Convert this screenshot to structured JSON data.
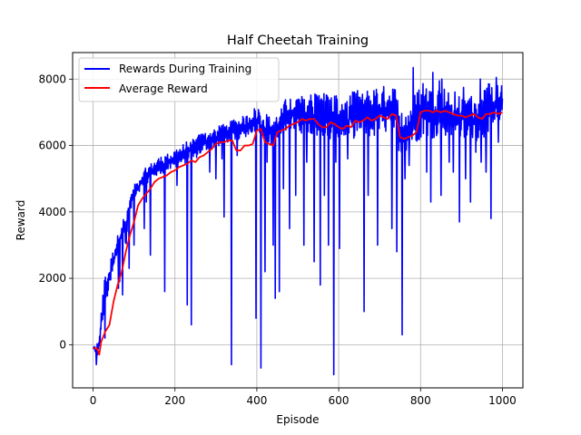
{
  "chart_data": {
    "type": "line",
    "title": "Half Cheetah Training",
    "xlabel": "Episode",
    "ylabel": "Reward",
    "xlim": [
      -50,
      1050
    ],
    "ylim": [
      -1300,
      8800
    ],
    "xticks": [
      0,
      200,
      400,
      600,
      800,
      1000
    ],
    "yticks": [
      0,
      2000,
      4000,
      6000,
      8000
    ],
    "grid": true,
    "legend": "top-left",
    "series": [
      {
        "name": "Rewards During Training",
        "color": "#0000ff",
        "envelope": [
          [
            0,
            -80,
            -80
          ],
          [
            5,
            -300,
            0
          ],
          [
            10,
            -650,
            100
          ],
          [
            15,
            -200,
            400
          ],
          [
            20,
            300,
            1000
          ],
          [
            25,
            700,
            1800
          ],
          [
            30,
            1200,
            2100
          ],
          [
            35,
            1400,
            2300
          ],
          [
            40,
            1600,
            2400
          ],
          [
            45,
            1900,
            2700
          ],
          [
            50,
            2200,
            2900
          ],
          [
            55,
            2500,
            3100
          ],
          [
            60,
            2700,
            3300
          ],
          [
            65,
            2900,
            3450
          ],
          [
            70,
            3200,
            3700
          ],
          [
            75,
            3400,
            3850
          ],
          [
            80,
            2400,
            4000
          ],
          [
            85,
            3700,
            4200
          ],
          [
            90,
            4000,
            4450
          ],
          [
            95,
            4200,
            4650
          ],
          [
            100,
            4300,
            4800
          ],
          [
            110,
            4500,
            5000
          ],
          [
            120,
            4700,
            5200
          ],
          [
            130,
            4850,
            5350
          ],
          [
            140,
            4950,
            5450
          ],
          [
            150,
            5050,
            5550
          ],
          [
            160,
            5100,
            5650
          ],
          [
            170,
            5150,
            5700
          ],
          [
            180,
            5200,
            5750
          ],
          [
            190,
            5250,
            5800
          ],
          [
            200,
            5300,
            5900
          ],
          [
            210,
            5350,
            6000
          ],
          [
            220,
            5400,
            6050
          ],
          [
            230,
            5500,
            6150
          ],
          [
            240,
            5550,
            6200
          ],
          [
            250,
            5600,
            6250
          ],
          [
            260,
            5700,
            6350
          ],
          [
            270,
            5800,
            6400
          ],
          [
            280,
            5850,
            6450
          ],
          [
            290,
            5900,
            6500
          ],
          [
            300,
            5950,
            6550
          ],
          [
            310,
            6000,
            6600
          ],
          [
            320,
            6050,
            6650
          ],
          [
            330,
            6100,
            6700
          ],
          [
            340,
            6150,
            6750
          ],
          [
            350,
            6150,
            6800
          ],
          [
            360,
            6200,
            6850
          ],
          [
            370,
            6250,
            6900
          ],
          [
            380,
            6300,
            6950
          ],
          [
            390,
            6400,
            7100
          ],
          [
            400,
            6450,
            7200
          ],
          [
            410,
            6250,
            7100
          ],
          [
            420,
            6100,
            7000
          ],
          [
            430,
            6000,
            6900
          ],
          [
            440,
            5950,
            6850
          ],
          [
            450,
            6000,
            7000
          ],
          [
            460,
            6200,
            7200
          ],
          [
            470,
            6400,
            7400
          ],
          [
            480,
            6450,
            7500
          ],
          [
            490,
            6400,
            7450
          ],
          [
            500,
            6450,
            7550
          ],
          [
            510,
            6350,
            7500
          ],
          [
            520,
            6300,
            7600
          ],
          [
            530,
            6400,
            7650
          ],
          [
            540,
            6300,
            7550
          ],
          [
            550,
            6250,
            7650
          ],
          [
            560,
            6300,
            7700
          ],
          [
            570,
            6250,
            7650
          ],
          [
            580,
            6100,
            7500
          ],
          [
            590,
            6200,
            7600
          ],
          [
            600,
            6150,
            7550
          ],
          [
            610,
            6150,
            7500
          ],
          [
            620,
            6100,
            7450
          ],
          [
            630,
            6250,
            7600
          ],
          [
            640,
            6200,
            7650
          ],
          [
            650,
            6300,
            7700
          ],
          [
            660,
            6250,
            7600
          ],
          [
            670,
            6300,
            7700
          ],
          [
            680,
            6200,
            7650
          ],
          [
            690,
            6300,
            7750
          ],
          [
            700,
            6250,
            7700
          ],
          [
            710,
            6400,
            7800
          ],
          [
            720,
            6350,
            7900
          ],
          [
            730,
            6300,
            7700
          ],
          [
            740,
            6200,
            7800
          ],
          [
            750,
            5700,
            7200
          ],
          [
            760,
            5800,
            7000
          ],
          [
            770,
            5900,
            7100
          ],
          [
            780,
            6000,
            7500
          ],
          [
            790,
            6100,
            7600
          ],
          [
            800,
            6200,
            7900
          ],
          [
            810,
            6300,
            8000
          ],
          [
            820,
            6250,
            7900
          ],
          [
            830,
            6200,
            7800
          ],
          [
            840,
            6300,
            7900
          ],
          [
            850,
            6350,
            7800
          ],
          [
            860,
            6300,
            7750
          ],
          [
            870,
            6250,
            7700
          ],
          [
            880,
            6200,
            7650
          ],
          [
            890,
            6200,
            7600
          ],
          [
            900,
            6150,
            7550
          ],
          [
            910,
            6150,
            7500
          ],
          [
            920,
            6200,
            7550
          ],
          [
            930,
            6100,
            7500
          ],
          [
            940,
            6150,
            7600
          ],
          [
            950,
            6200,
            7700
          ],
          [
            960,
            6200,
            7800
          ],
          [
            970,
            6250,
            7900
          ],
          [
            980,
            6300,
            8000
          ],
          [
            990,
            6350,
            8100
          ],
          [
            1000,
            6600,
            7800
          ]
        ],
        "spikes": [
          [
            8,
            -600
          ],
          [
            18,
            500
          ],
          [
            29,
            200
          ],
          [
            62,
            1700
          ],
          [
            65,
            1900
          ],
          [
            72,
            1500
          ],
          [
            88,
            2300
          ],
          [
            100,
            3000
          ],
          [
            125,
            3500
          ],
          [
            130,
            4300
          ],
          [
            140,
            2700
          ],
          [
            175,
            1600
          ],
          [
            205,
            4800
          ],
          [
            230,
            1200
          ],
          [
            240,
            600
          ],
          [
            285,
            5200
          ],
          [
            300,
            5000
          ],
          [
            315,
            5600
          ],
          [
            320,
            3850
          ],
          [
            338,
            -600
          ],
          [
            352,
            5700
          ],
          [
            398,
            800
          ],
          [
            405,
            6900
          ],
          [
            410,
            -700
          ],
          [
            420,
            2200
          ],
          [
            425,
            5500
          ],
          [
            440,
            3000
          ],
          [
            445,
            1400
          ],
          [
            455,
            1600
          ],
          [
            465,
            4700
          ],
          [
            480,
            3500
          ],
          [
            495,
            4500
          ],
          [
            515,
            3000
          ],
          [
            522,
            5500
          ],
          [
            540,
            2500
          ],
          [
            555,
            1800
          ],
          [
            565,
            4500
          ],
          [
            575,
            3000
          ],
          [
            588,
            -900
          ],
          [
            593,
            5500
          ],
          [
            602,
            2900
          ],
          [
            622,
            5600
          ],
          [
            662,
            1000
          ],
          [
            672,
            4500
          ],
          [
            695,
            3000
          ],
          [
            730,
            3500
          ],
          [
            742,
            2800
          ],
          [
            755,
            300
          ],
          [
            762,
            5000
          ],
          [
            772,
            5400
          ],
          [
            800,
            7000
          ],
          [
            815,
            5200
          ],
          [
            825,
            4300
          ],
          [
            850,
            4500
          ],
          [
            870,
            5500
          ],
          [
            880,
            5200
          ],
          [
            895,
            3700
          ],
          [
            910,
            5000
          ],
          [
            922,
            4300
          ],
          [
            935,
            5800
          ],
          [
            948,
            5500
          ],
          [
            960,
            5200
          ],
          [
            972,
            3800
          ],
          [
            990,
            6100
          ]
        ],
        "peaks": [
          [
            782,
            8350
          ],
          [
            830,
            8200
          ],
          [
            846,
            7950
          ],
          [
            852,
            8000
          ],
          [
            905,
            7750
          ],
          [
            946,
            8000
          ],
          [
            985,
            8050
          ],
          [
            998,
            7800
          ]
        ]
      },
      {
        "name": "Average Reward",
        "color": "#ff0000",
        "x": [
          0,
          10,
          15,
          20,
          30,
          40,
          50,
          60,
          70,
          80,
          90,
          100,
          110,
          120,
          130,
          140,
          150,
          160,
          170,
          180,
          190,
          200,
          210,
          220,
          230,
          240,
          250,
          260,
          270,
          280,
          290,
          300,
          310,
          320,
          330,
          340,
          350,
          360,
          370,
          380,
          390,
          400,
          410,
          420,
          430,
          440,
          450,
          460,
          470,
          480,
          490,
          500,
          510,
          520,
          530,
          540,
          550,
          560,
          570,
          580,
          590,
          600,
          610,
          620,
          630,
          640,
          650,
          660,
          670,
          680,
          690,
          700,
          710,
          720,
          730,
          740,
          750,
          760,
          770,
          780,
          790,
          800,
          810,
          820,
          830,
          840,
          850,
          860,
          870,
          880,
          890,
          900,
          910,
          920,
          930,
          940,
          950,
          960,
          970,
          980,
          990,
          1000
        ],
        "y": [
          -100,
          -120,
          -300,
          100,
          400,
          600,
          1300,
          1800,
          2200,
          2800,
          3300,
          3700,
          4200,
          4400,
          4550,
          4700,
          4900,
          5000,
          5050,
          5100,
          5200,
          5250,
          5350,
          5400,
          5450,
          5550,
          5500,
          5650,
          5700,
          5800,
          5900,
          6050,
          6100,
          6100,
          6150,
          6150,
          5850,
          5850,
          6000,
          6000,
          6050,
          6450,
          6500,
          6100,
          6050,
          6000,
          6400,
          6450,
          6500,
          6600,
          6650,
          6700,
          6800,
          6750,
          6800,
          6800,
          6650,
          6550,
          6550,
          6700,
          6650,
          6550,
          6500,
          6600,
          6550,
          6750,
          6700,
          6750,
          6850,
          6750,
          6800,
          6900,
          6850,
          6800,
          6950,
          6900,
          6250,
          6200,
          6250,
          6300,
          6400,
          7000,
          7050,
          7050,
          7000,
          7050,
          7000,
          7050,
          7000,
          6950,
          6900,
          6900,
          6850,
          6900,
          6950,
          6850,
          6800,
          6950,
          6950,
          7000,
          6950,
          7000
        ]
      }
    ]
  }
}
